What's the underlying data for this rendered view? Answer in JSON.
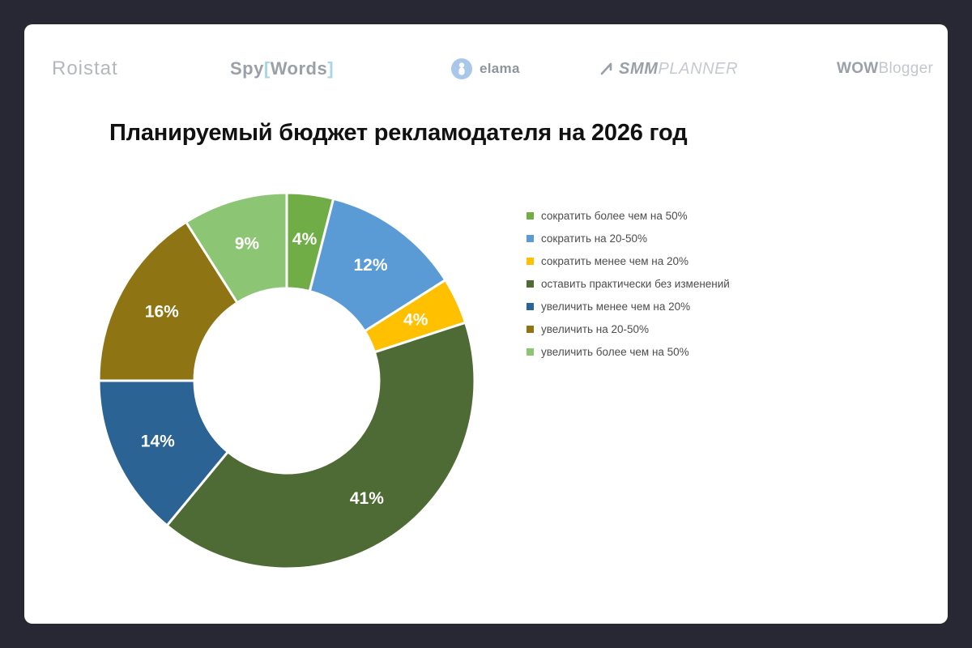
{
  "page": {
    "background": "#272834",
    "card_background": "#ffffff"
  },
  "header": {
    "logos": {
      "roistat": {
        "text": "Roistat"
      },
      "spywords": {
        "spy": "Spy",
        "open_bracket": "[",
        "words": "Words",
        "close_bracket": "]"
      },
      "elama": {
        "text": "elama"
      },
      "smmplanner": {
        "smm": "SMM",
        "planner": "PLANNER"
      },
      "wowblogger": {
        "wow": "WOW",
        "blogger": "Blogger"
      }
    }
  },
  "chart_data": {
    "type": "pie",
    "subtype": "donut",
    "title": "Планируемый бюджет рекламодателя на 2026 год",
    "start_angle_deg": 0,
    "direction": "clockwise",
    "value_suffix": "%",
    "legend_position": "right",
    "segments": [
      {
        "label": "сократить более чем на 50%",
        "value": 4,
        "color": "#70AD47"
      },
      {
        "label": "сократить на 20-50%",
        "value": 12,
        "color": "#5B9BD5"
      },
      {
        "label": "сократить менее чем на 20%",
        "value": 4,
        "color": "#FFC000"
      },
      {
        "label": "оставить практически без изменений",
        "value": 41,
        "color": "#4E6B35"
      },
      {
        "label": "увеличить менее чем на 20%",
        "value": 14,
        "color": "#2A6394"
      },
      {
        "label": "увеличить на 20-50%",
        "value": 16,
        "color": "#8E7412"
      },
      {
        "label": "увеличить более чем на 50%",
        "value": 9,
        "color": "#8CC573"
      }
    ]
  }
}
